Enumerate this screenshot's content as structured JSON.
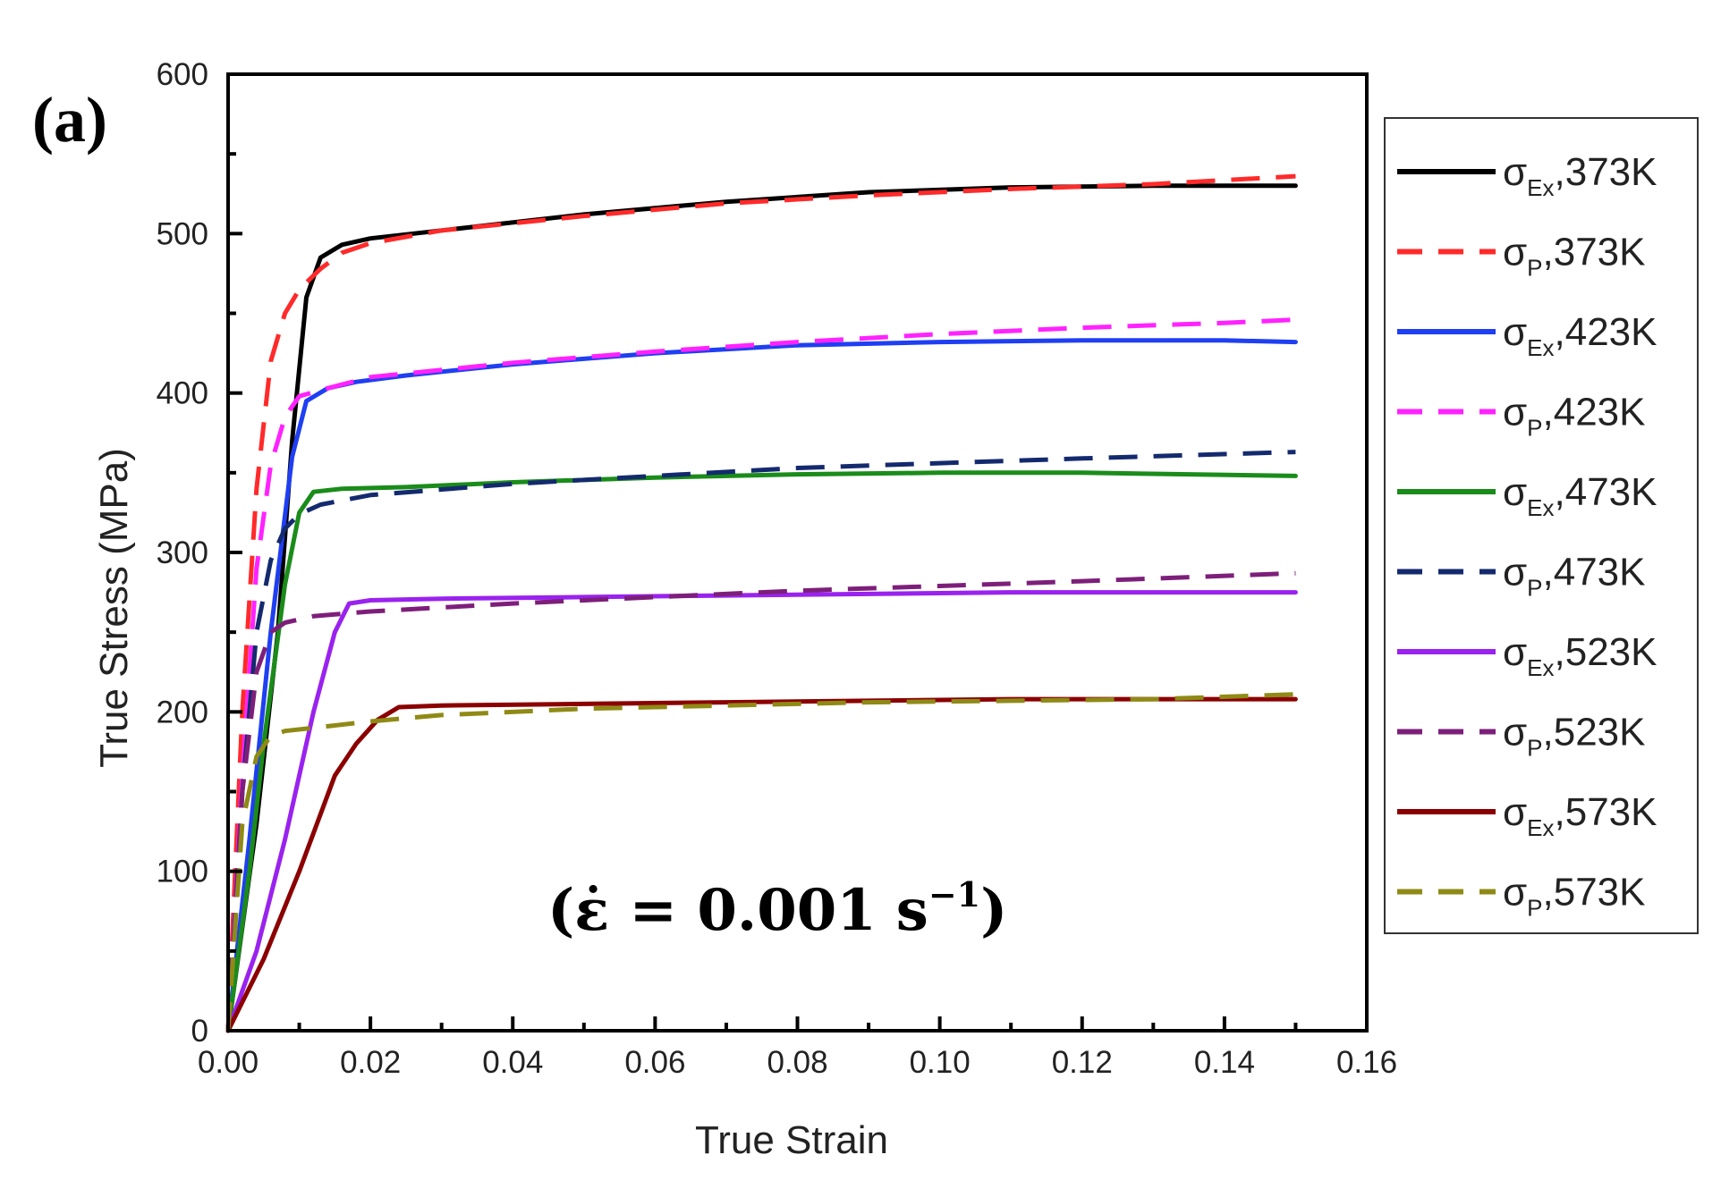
{
  "panel_label": "(a)",
  "annotation": {
    "open": "(",
    "symbol": "ε̇",
    "equals": " = ",
    "value": "0.001",
    "unit_base": "s",
    "unit_exp": "−1",
    "close": ")"
  },
  "chart_data": {
    "type": "line",
    "title": "",
    "xlabel": "True Strain",
    "ylabel": "True Stress (MPa)",
    "xlim": [
      0,
      0.16
    ],
    "ylim": [
      0,
      600
    ],
    "xticks": [
      "0.00",
      "0.02",
      "0.04",
      "0.06",
      "0.08",
      "0.10",
      "0.12",
      "0.14",
      "0.16"
    ],
    "yticks": [
      "0",
      "100",
      "200",
      "300",
      "400",
      "500",
      "600"
    ],
    "grid": false,
    "legend_position": "right-outside",
    "series": [
      {
        "name": "σEx,373K",
        "legend_symbol": "σ",
        "legend_sub": "Ex",
        "legend_suffix": ",373K",
        "color": "#000000",
        "style": "solid",
        "x": [
          0,
          0.004,
          0.007,
          0.009,
          0.011,
          0.013,
          0.016,
          0.02,
          0.03,
          0.05,
          0.07,
          0.09,
          0.11,
          0.13,
          0.15
        ],
        "y": [
          0,
          130,
          250,
          370,
          460,
          485,
          493,
          497,
          502,
          512,
          520,
          526,
          529,
          530,
          530
        ]
      },
      {
        "name": "σP,373K",
        "legend_symbol": "σ",
        "legend_sub": "P",
        "legend_suffix": ",373K",
        "color": "#ff2a2a",
        "style": "dashed",
        "x": [
          0,
          0.002,
          0.004,
          0.006,
          0.008,
          0.01,
          0.013,
          0.016,
          0.02,
          0.03,
          0.05,
          0.07,
          0.09,
          0.11,
          0.13,
          0.15
        ],
        "y": [
          0,
          200,
          340,
          420,
          450,
          465,
          478,
          488,
          494,
          502,
          511,
          519,
          524,
          528,
          531,
          536
        ]
      },
      {
        "name": "σEx,423K",
        "legend_symbol": "σ",
        "legend_sub": "Ex",
        "legend_suffix": ",423K",
        "color": "#1f3ff2",
        "style": "solid",
        "x": [
          0,
          0.003,
          0.006,
          0.009,
          0.011,
          0.014,
          0.018,
          0.025,
          0.04,
          0.06,
          0.08,
          0.1,
          0.12,
          0.14,
          0.15
        ],
        "y": [
          0,
          120,
          250,
          360,
          395,
          403,
          407,
          411,
          418,
          425,
          430,
          432,
          433,
          433,
          432
        ]
      },
      {
        "name": "σP,423K",
        "legend_symbol": "σ",
        "legend_sub": "P",
        "legend_suffix": ",423K",
        "color": "#ff22ff",
        "style": "dashed",
        "x": [
          0,
          0.002,
          0.004,
          0.006,
          0.008,
          0.01,
          0.014,
          0.02,
          0.04,
          0.06,
          0.08,
          0.1,
          0.12,
          0.14,
          0.15
        ],
        "y": [
          0,
          160,
          290,
          355,
          385,
          398,
          403,
          410,
          419,
          426,
          432,
          437,
          441,
          444,
          446
        ]
      },
      {
        "name": "σEx,473K",
        "legend_symbol": "σ",
        "legend_sub": "Ex",
        "legend_suffix": ",473K",
        "color": "#1a8c1a",
        "style": "solid",
        "x": [
          0,
          0.003,
          0.005,
          0.008,
          0.01,
          0.012,
          0.016,
          0.025,
          0.04,
          0.06,
          0.08,
          0.1,
          0.12,
          0.15
        ],
        "y": [
          0,
          100,
          180,
          280,
          325,
          338,
          340,
          341,
          344,
          347,
          349,
          350,
          350,
          348
        ]
      },
      {
        "name": "σP,473K",
        "legend_symbol": "σ",
        "legend_sub": "P",
        "legend_suffix": ",473K",
        "color": "#142a6e",
        "style": "dashed",
        "x": [
          0,
          0.002,
          0.004,
          0.006,
          0.008,
          0.01,
          0.013,
          0.02,
          0.04,
          0.06,
          0.08,
          0.1,
          0.12,
          0.15
        ],
        "y": [
          0,
          150,
          250,
          295,
          315,
          324,
          330,
          336,
          343,
          348,
          353,
          356,
          359,
          363
        ]
      },
      {
        "name": "σEx,523K",
        "legend_symbol": "σ",
        "legend_sub": "Ex",
        "legend_suffix": ",523K",
        "color": "#9a22ee",
        "style": "solid",
        "x": [
          0,
          0.004,
          0.008,
          0.012,
          0.015,
          0.017,
          0.02,
          0.03,
          0.05,
          0.07,
          0.09,
          0.11,
          0.13,
          0.15
        ],
        "y": [
          0,
          50,
          120,
          200,
          250,
          268,
          270,
          271,
          272,
          273,
          274,
          275,
          275,
          275
        ]
      },
      {
        "name": "σP,523K",
        "legend_symbol": "σ",
        "legend_sub": "P",
        "legend_suffix": ",523K",
        "color": "#7d1f7a",
        "style": "dashed",
        "x": [
          0,
          0.002,
          0.004,
          0.006,
          0.008,
          0.012,
          0.02,
          0.04,
          0.06,
          0.08,
          0.1,
          0.12,
          0.15
        ],
        "y": [
          0,
          150,
          225,
          250,
          256,
          260,
          263,
          268,
          272,
          276,
          279,
          282,
          287
        ]
      },
      {
        "name": "σEx,573K",
        "legend_symbol": "σ",
        "legend_sub": "Ex",
        "legend_suffix": ",573K",
        "color": "#8b0000",
        "style": "solid",
        "x": [
          0,
          0.005,
          0.01,
          0.015,
          0.018,
          0.021,
          0.024,
          0.03,
          0.05,
          0.07,
          0.09,
          0.11,
          0.13,
          0.15
        ],
        "y": [
          0,
          45,
          100,
          160,
          180,
          195,
          203,
          204,
          205,
          206,
          207,
          208,
          208,
          208
        ]
      },
      {
        "name": "σP,573K",
        "legend_symbol": "σ",
        "legend_sub": "P",
        "legend_suffix": ",573K",
        "color": "#8f8a16",
        "style": "dashed",
        "x": [
          0,
          0.002,
          0.004,
          0.006,
          0.008,
          0.012,
          0.02,
          0.03,
          0.05,
          0.07,
          0.09,
          0.11,
          0.13,
          0.15
        ],
        "y": [
          0,
          130,
          172,
          185,
          188,
          190,
          194,
          198,
          202,
          204,
          206,
          207,
          208,
          211
        ]
      }
    ]
  }
}
